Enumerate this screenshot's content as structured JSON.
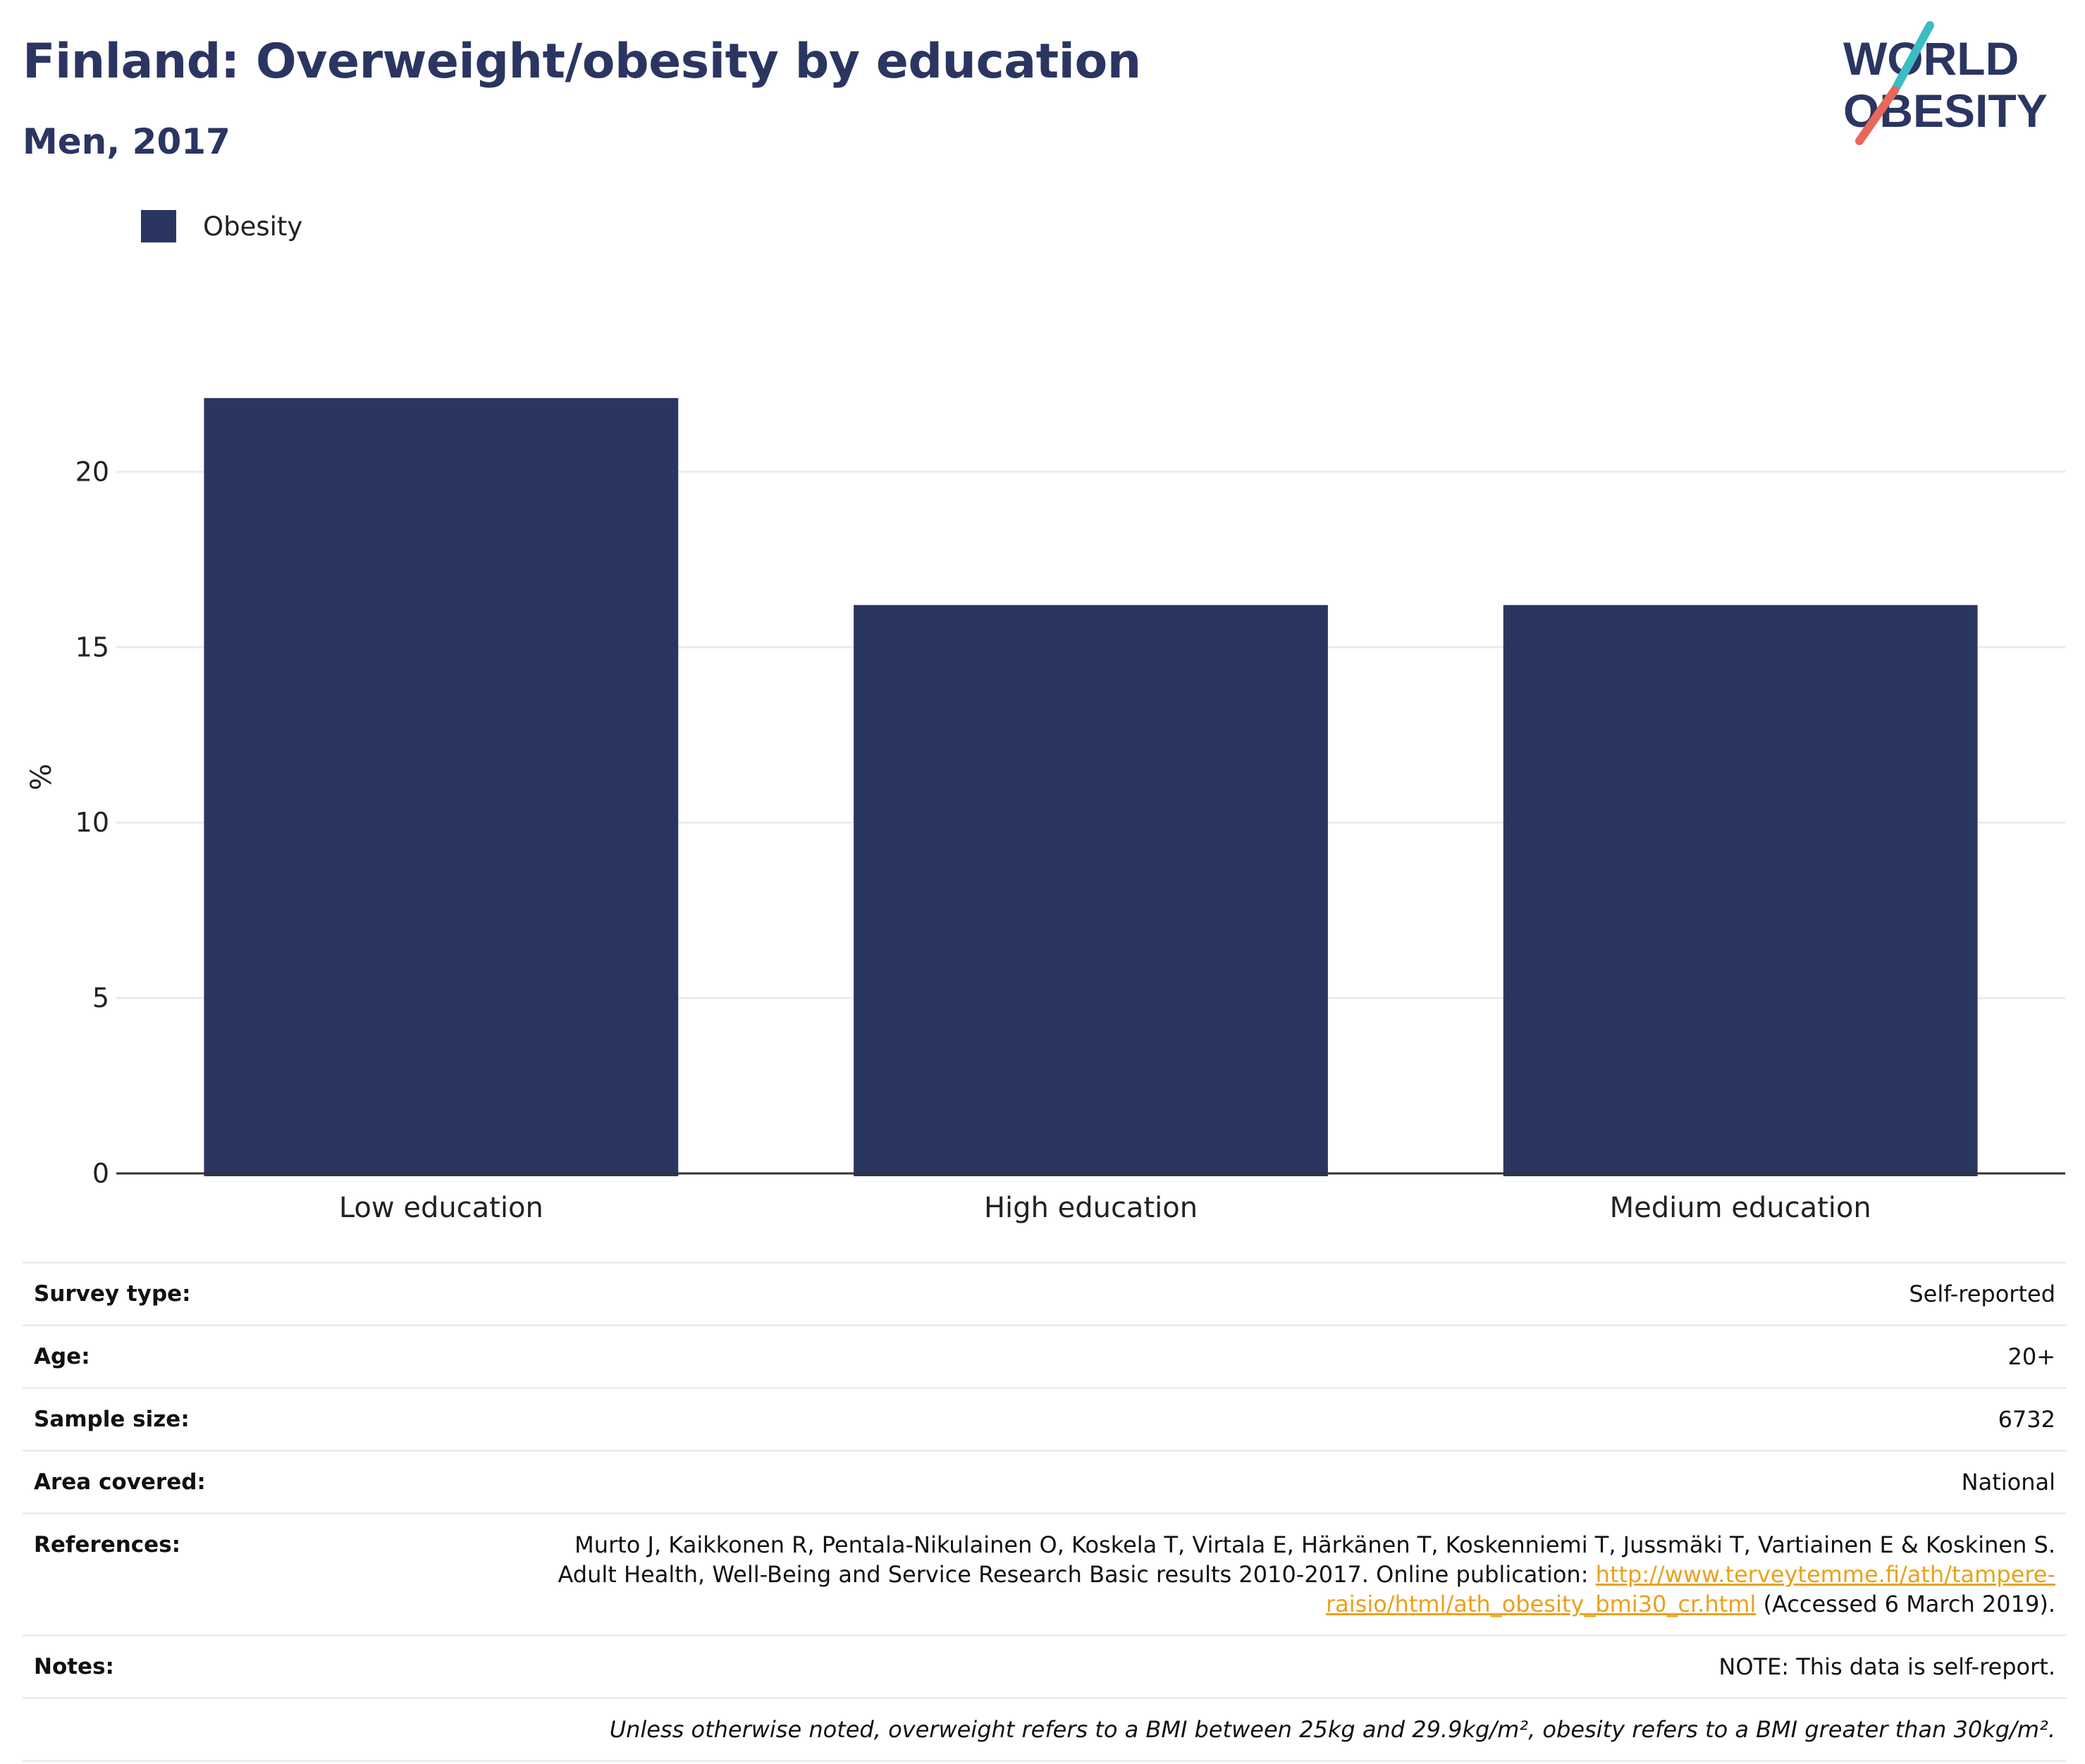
{
  "header": {
    "title": "Finland: Overweight/obesity by education",
    "subtitle": "Men, 2017"
  },
  "logo": {
    "line1": "WORLD",
    "line2": "OBESITY",
    "colors": {
      "text": "#2b3562",
      "slash_top": "#3cbcc3",
      "slash_bottom": "#e8685a"
    }
  },
  "legend": {
    "items": [
      {
        "label": "Obesity",
        "color": "#2b3562"
      }
    ]
  },
  "chart_data": {
    "type": "bar",
    "categories": [
      "Low education",
      "High education",
      "Medium education"
    ],
    "series": [
      {
        "name": "Obesity",
        "values": [
          22.1,
          16.2,
          16.2
        ],
        "color": "#2b3562"
      }
    ],
    "ylabel": "%",
    "xlabel": "",
    "ylim": [
      0,
      23
    ],
    "yticks": [
      0,
      5,
      10,
      15,
      20
    ],
    "grid": true,
    "legend_position": "top-left"
  },
  "info": {
    "survey_type": {
      "label": "Survey type:",
      "value": "Self-reported"
    },
    "age": {
      "label": "Age:",
      "value": "20+"
    },
    "sample_size": {
      "label": "Sample size:",
      "value": "6732"
    },
    "area": {
      "label": "Area covered:",
      "value": "National"
    },
    "references": {
      "label": "References:",
      "line1": "Murto J, Kaikkonen R, Pentala-Nikulainen O, Koskela T, Virtala E, Härkänen T, Koskenniemi T, Jussmäki T, Vartiainen E & Koskinen S.",
      "line2_text": "Adult Health, Well-Being and Service Research Basic results 2010-2017. Online publication: ",
      "link_part1": "http://www.terveytemme.fi/ath/tampere-",
      "link_part2": "raisio/html/ath_obesity_bmi30_cr.html",
      "accessed": " (Accessed 6 March 2019)."
    },
    "notes": {
      "label": "Notes:",
      "value": "NOTE: This data is self-report."
    },
    "footnote": "Unless otherwise noted, overweight refers to a BMI between 25kg and 29.9kg/m², obesity refers to a BMI greater than 30kg/m²."
  }
}
